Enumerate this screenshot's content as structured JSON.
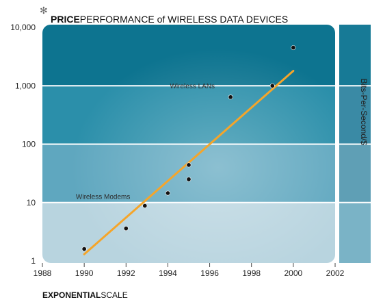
{
  "colors": {
    "band_top": "#0d7490",
    "band_2": "#2b8faa",
    "band_3": "#5fa7bf",
    "band_bottom": "#b8d4df",
    "trend_line": "#f5a52a",
    "points": "#111111",
    "side_dark": "#177a96",
    "side_light": "#7ab3c6"
  },
  "title": {
    "asterisk": "✻",
    "bold": "PRICE",
    "rest": "PERFORMANCE of WIRELESS DATA DEVICES"
  },
  "footer": {
    "bold": "EXPONENTIAL",
    "rest": "SCALE"
  },
  "side_label": "Bits-Per-Second/$",
  "chart_data": {
    "type": "scatter",
    "title": "PRICEPERFORMANCE of WIRELESS DATA DEVICES",
    "ylabel": "Bits-Per-Second/$",
    "xlabel": "EXPONENTIALSCALE",
    "y_scale": "log",
    "xlim": [
      1988,
      2002
    ],
    "ylim": [
      1,
      10000
    ],
    "x_ticks": [
      "1988",
      "1990",
      "1992",
      "1994",
      "1996",
      "1998",
      "2000",
      "2002"
    ],
    "y_ticks": [
      "1",
      "10",
      "100",
      "1,000",
      "10,000"
    ],
    "points": [
      {
        "x": 1990.0,
        "y": 1.6
      },
      {
        "x": 1992.0,
        "y": 3.6
      },
      {
        "x": 1992.9,
        "y": 8.8
      },
      {
        "x": 1994.0,
        "y": 14.5
      },
      {
        "x": 1995.0,
        "y": 25
      },
      {
        "x": 1995.0,
        "y": 44
      },
      {
        "x": 1997.0,
        "y": 640
      },
      {
        "x": 1999.0,
        "y": 1000
      },
      {
        "x": 2000.0,
        "y": 4500
      }
    ],
    "trend": {
      "x": [
        1990.0,
        2000.0
      ],
      "y": [
        1.3,
        1800
      ]
    },
    "annotations": [
      {
        "text": "Wireless LANs",
        "x": 1994.1,
        "y": 900
      },
      {
        "text": "Wireless Modems",
        "x": 1989.6,
        "y": 11.5
      }
    ]
  }
}
